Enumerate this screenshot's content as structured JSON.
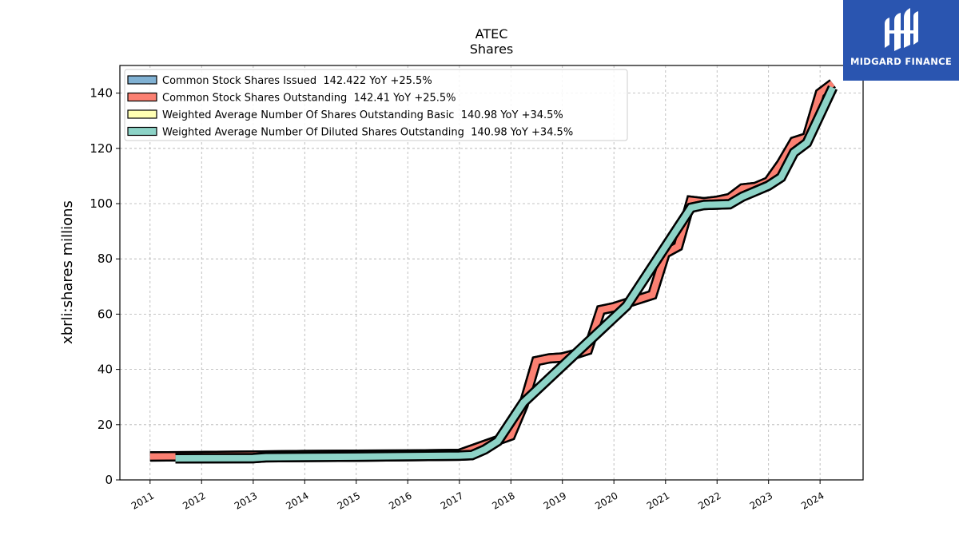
{
  "chart_data": {
    "type": "area",
    "title": "ATEC",
    "subtitle": "Shares",
    "ylabel": "xbrli:shares millions",
    "xlabel": "",
    "xlim": [
      "2010-06-01",
      "2024-11-01"
    ],
    "ylim": [
      0,
      150
    ],
    "yticks": [
      0,
      20,
      40,
      60,
      80,
      100,
      120,
      140
    ],
    "xticks": [
      "2011",
      "2012",
      "2013",
      "2014",
      "2015",
      "2016",
      "2017",
      "2018",
      "2019",
      "2020",
      "2021",
      "2022",
      "2023",
      "2024"
    ],
    "grid": true,
    "legend_position": "top-left",
    "series": [
      {
        "name": "Common Stock Shares Issued  142.422 YoY +25.5%",
        "color": "#80b1d3",
        "x": [
          "2011-01-01",
          "2011-12-31",
          "2012-12-31",
          "2013-12-31",
          "2014-12-31",
          "2015-12-31",
          "2016-12-31",
          "2017-12-31",
          "2018-03-31",
          "2018-06-30",
          "2018-09-30",
          "2018-12-31",
          "2019-03-31",
          "2019-06-30",
          "2019-09-30",
          "2019-12-31",
          "2020-03-31",
          "2020-06-30",
          "2020-09-30",
          "2020-12-31",
          "2021-03-31",
          "2021-06-30",
          "2021-09-30",
          "2021-12-31",
          "2022-03-31",
          "2022-06-30",
          "2022-09-30",
          "2022-12-31",
          "2023-03-31",
          "2023-06-30",
          "2023-09-30",
          "2023-12-31",
          "2024-03-31"
        ],
        "values": [
          8.5,
          8.6,
          8.8,
          9.0,
          9.1,
          9.2,
          9.4,
          16.0,
          27.0,
          43.0,
          44.0,
          44.3,
          45.5,
          47.0,
          61.5,
          62.5,
          64.0,
          65.5,
          67.0,
          82.0,
          84.5,
          101.0,
          100.5,
          101.0,
          102.0,
          105.5,
          106.0,
          108.0,
          114.5,
          122.5,
          124.0,
          140.0,
          143.5
        ]
      },
      {
        "name": "Common Stock Shares Outstanding  142.41 YoY +25.5%",
        "color": "#fb8072",
        "x": [
          "2011-01-01",
          "2011-12-31",
          "2012-12-31",
          "2013-12-31",
          "2014-12-31",
          "2015-12-31",
          "2016-12-31",
          "2017-12-31",
          "2018-03-31",
          "2018-06-30",
          "2018-09-30",
          "2018-12-31",
          "2019-03-31",
          "2019-06-30",
          "2019-09-30",
          "2019-12-31",
          "2020-03-31",
          "2020-06-30",
          "2020-09-30",
          "2020-12-31",
          "2021-03-31",
          "2021-06-30",
          "2021-09-30",
          "2021-12-31",
          "2022-03-31",
          "2022-06-30",
          "2022-09-30",
          "2022-12-31",
          "2023-03-31",
          "2023-06-30",
          "2023-09-30",
          "2023-12-31",
          "2024-03-31"
        ],
        "values": [
          8.5,
          8.6,
          8.8,
          9.0,
          9.1,
          9.2,
          9.4,
          16.0,
          27.0,
          43.0,
          44.0,
          44.3,
          45.5,
          47.0,
          61.5,
          62.5,
          64.0,
          65.5,
          67.0,
          82.0,
          84.5,
          101.0,
          100.5,
          101.0,
          102.0,
          105.5,
          106.0,
          108.0,
          114.5,
          122.5,
          124.0,
          140.0,
          143.5
        ]
      },
      {
        "name": "Weighted Average Number Of Shares Outstanding Basic  140.98 YoY +34.5%",
        "color": "#ffffb3",
        "x": [
          "2011-06-30",
          "2012-12-31",
          "2013-03-31",
          "2014-12-31",
          "2015-12-31",
          "2016-12-31",
          "2017-03-31",
          "2017-06-30",
          "2017-09-30",
          "2018-03-31",
          "2020-03-31",
          "2021-06-30",
          "2021-09-30",
          "2022-03-31",
          "2022-06-30",
          "2022-09-30",
          "2022-12-31",
          "2023-03-31",
          "2023-06-30",
          "2023-09-30",
          "2024-03-31"
        ],
        "values": [
          7.8,
          7.9,
          8.2,
          8.4,
          8.6,
          8.8,
          9.0,
          11.0,
          14.0,
          28.0,
          63.0,
          98.5,
          99.5,
          99.8,
          102.5,
          104.5,
          106.5,
          109.5,
          118.5,
          122.0,
          142.0
        ]
      },
      {
        "name": "Weighted Average Number Of Diluted Shares Outstanding  140.98 YoY +34.5%",
        "color": "#8dd3c7",
        "x": [
          "2011-06-30",
          "2012-12-31",
          "2013-03-31",
          "2014-12-31",
          "2015-12-31",
          "2016-12-31",
          "2017-03-31",
          "2017-06-30",
          "2017-09-30",
          "2018-03-31",
          "2020-03-31",
          "2021-06-30",
          "2021-09-30",
          "2022-03-31",
          "2022-06-30",
          "2022-09-30",
          "2022-12-31",
          "2023-03-31",
          "2023-06-30",
          "2023-09-30",
          "2024-03-31"
        ],
        "values": [
          7.8,
          7.9,
          8.2,
          8.4,
          8.6,
          8.8,
          9.0,
          11.0,
          14.0,
          28.0,
          63.0,
          98.5,
          99.5,
          99.8,
          102.5,
          104.5,
          106.5,
          109.5,
          118.5,
          122.0,
          142.0
        ]
      }
    ]
  },
  "logo": {
    "text": "MIDGARD FINANCE",
    "background": "#2a55b0"
  }
}
